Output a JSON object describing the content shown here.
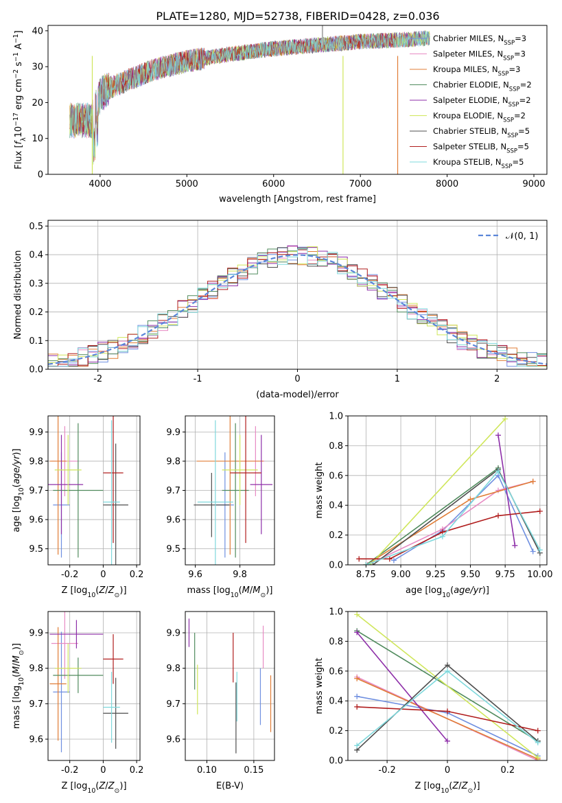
{
  "figure": {
    "title": "PLATE=1280, MJD=52738, FIBERID=0428, z=0.036"
  },
  "colors": {
    "series": [
      "#6f8fe0",
      "#e78ac3",
      "#e07c35",
      "#4f8a5c",
      "#8d2ea8",
      "#cfe65a",
      "#4d4d4d",
      "#b01c1c",
      "#7ed8dc"
    ],
    "normal_curve": "#5b86d9",
    "grid": "#b0b0b0"
  },
  "legend_entries": [
    {
      "main": "Chabrier MILES, N",
      "sub": "SSP",
      "tail": "=3"
    },
    {
      "main": "Salpeter MILES, N",
      "sub": "SSP",
      "tail": "=3"
    },
    {
      "main": "Kroupa MILES, N",
      "sub": "SSP",
      "tail": "=3"
    },
    {
      "main": "Chabrier ELODIE, N",
      "sub": "SSP",
      "tail": "=2"
    },
    {
      "main": "Salpeter ELODIE, N",
      "sub": "SSP",
      "tail": "=2"
    },
    {
      "main": "Kroupa ELODIE, N",
      "sub": "SSP",
      "tail": "=2"
    },
    {
      "main": "Chabrier STELIB, N",
      "sub": "SSP",
      "tail": "=5"
    },
    {
      "main": "Salpeter STELIB, N",
      "sub": "SSP",
      "tail": "=5"
    },
    {
      "main": "Kroupa STELIB, N",
      "sub": "SSP",
      "tail": "=5"
    }
  ],
  "chart_data": [
    {
      "id": "spectrum",
      "type": "line",
      "xlabel": "wavelength [Angstrom, rest frame]",
      "ylabel": "Flux [f_λ 10^-17 erg cm^-2 s^-1 A^-1]",
      "xlim": [
        3400,
        9150
      ],
      "ylim": [
        0,
        41.5
      ],
      "xticks": [
        4000,
        5000,
        6000,
        7000,
        8000,
        9000
      ],
      "yticks": [
        0,
        10,
        20,
        30,
        40
      ],
      "continuum_x": [
        3650,
        3900,
        4000,
        4100,
        4300,
        4600,
        5000,
        5500,
        6000,
        6500,
        7000,
        7500,
        7800
      ],
      "continuum_y": [
        15,
        15,
        22,
        24,
        26,
        29,
        31.5,
        33.5,
        35,
        36,
        37,
        37.5,
        38
      ],
      "model_end_x": [
        7800,
        7800,
        7800,
        7800,
        7800,
        7800,
        7800,
        7420,
        7800
      ],
      "drops_x": [
        3910,
        6800,
        7430
      ],
      "xlabel_text": "wavelength [Angstrom, rest frame]"
    },
    {
      "id": "residuals",
      "type": "histogram",
      "xlabel": "(data-model)/error",
      "ylabel": "Normed distribution",
      "xlim": [
        -2.5,
        2.5
      ],
      "ylim": [
        0,
        0.52
      ],
      "xticks": [
        -2,
        -1,
        0,
        1,
        2
      ],
      "yticks": [
        0,
        0.1,
        0.2,
        0.3,
        0.4,
        0.5
      ],
      "legend": "N(0,1)",
      "bin_edges_start": -2.5,
      "bin_width": 0.1
    },
    {
      "id": "age_vs_Z",
      "type": "errorbar",
      "xlabel": "Z [log10(Z/Z⊙)]",
      "ylabel": "age [log10(age/yr)]",
      "xlim": [
        -0.33,
        0.22
      ],
      "ylim": [
        9.445,
        9.955
      ],
      "xticks": [
        -0.2,
        0.0,
        0.2
      ],
      "yticks": [
        9.5,
        9.6,
        9.7,
        9.8,
        9.9
      ],
      "points": [
        {
          "x": -0.25,
          "xerr": 0.05,
          "y": 9.65,
          "yerr": 0.18
        },
        {
          "x": -0.23,
          "xerr": 0.08,
          "y": 9.8,
          "yerr": 0.12
        },
        {
          "x": -0.27,
          "xerr": 0.05,
          "y": 9.8,
          "yerr": 0.32
        },
        {
          "x": -0.15,
          "xerr": 0.15,
          "y": 9.7,
          "yerr": 0.23
        },
        {
          "x": -0.25,
          "xerr": 0.13,
          "y": 9.72,
          "yerr": 0.17
        },
        {
          "x": -0.21,
          "xerr": 0.08,
          "y": 9.77,
          "yerr": 0.12
        },
        {
          "x": 0.075,
          "xerr": 0.075,
          "y": 9.65,
          "yerr": 0.21
        },
        {
          "x": 0.06,
          "xerr": 0.06,
          "y": 9.76,
          "yerr": 0.24
        },
        {
          "x": 0.05,
          "xerr": 0.05,
          "y": 9.66,
          "yerr": 0.28
        }
      ]
    },
    {
      "id": "age_vs_mass",
      "type": "errorbar",
      "xlabel": "mass [log10(M/M⊙)]",
      "ylabel": "",
      "xlim": [
        9.555,
        9.955
      ],
      "ylim": [
        9.445,
        9.955
      ],
      "xticks": [
        9.6,
        9.8
      ],
      "yticks": [
        9.5,
        9.6,
        9.7,
        9.8,
        9.9
      ],
      "points": [
        {
          "x": 9.733,
          "xerr": 0.04,
          "y": 9.65,
          "yerr": 0.18
        },
        {
          "x": 9.87,
          "xerr": 0.04,
          "y": 9.8,
          "yerr": 0.12
        },
        {
          "x": 9.756,
          "xerr": 0.15,
          "y": 9.8,
          "yerr": 0.32
        },
        {
          "x": 9.78,
          "xerr": 0.06,
          "y": 9.7,
          "yerr": 0.23
        },
        {
          "x": 9.896,
          "xerr": 0.05,
          "y": 9.72,
          "yerr": 0.17
        },
        {
          "x": 9.8,
          "xerr": 0.08,
          "y": 9.77,
          "yerr": 0.12
        },
        {
          "x": 9.673,
          "xerr": 0.08,
          "y": 9.65,
          "yerr": 0.11
        },
        {
          "x": 9.826,
          "xerr": 0.07,
          "y": 9.76,
          "yerr": 0.24
        },
        {
          "x": 9.69,
          "xerr": 0.08,
          "y": 9.66,
          "yerr": 0.28
        }
      ]
    },
    {
      "id": "weight_vs_age",
      "type": "line",
      "xlabel": "age [log10(age/yr)]",
      "ylabel": "mass weight",
      "xlim": [
        8.62,
        10.05
      ],
      "ylim": [
        0,
        1.0
      ],
      "xticks": [
        8.75,
        9.0,
        9.25,
        9.5,
        9.75,
        10.0
      ],
      "xtick_labels": [
        "8.75",
        "9.00",
        "9.25",
        "9.50",
        "9.75",
        "10.00"
      ],
      "yticks": [
        0,
        0.2,
        0.4,
        0.6,
        0.8,
        1.0
      ],
      "series": [
        {
          "x": [
            8.95,
            9.3,
            9.7,
            9.95
          ],
          "y": [
            0.03,
            0.23,
            0.6,
            0.09
          ]
        },
        {
          "x": [
            8.76,
            9.3,
            9.7,
            9.95
          ],
          "y": [
            0.0,
            0.24,
            0.5,
            0.56
          ]
        },
        {
          "x": [
            8.75,
            9.5,
            9.95
          ],
          "y": [
            0.0,
            0.44,
            0.56
          ]
        },
        {
          "x": [
            8.75,
            9.7
          ],
          "y": [
            0.0,
            0.65
          ]
        },
        {
          "x": [
            9.7,
            9.82
          ],
          "y": [
            0.87,
            0.13
          ]
        },
        {
          "x": [
            8.78,
            9.75
          ],
          "y": [
            0.0,
            0.98
          ]
        },
        {
          "x": [
            8.8,
            9.7,
            10.0
          ],
          "y": [
            0.0,
            0.64,
            0.08
          ]
        },
        {
          "x": [
            8.7,
            8.92,
            9.3,
            9.7,
            10.0
          ],
          "y": [
            0.04,
            0.04,
            0.22,
            0.33,
            0.36
          ]
        },
        {
          "x": [
            8.75,
            9.3,
            9.7,
            10.0
          ],
          "y": [
            0.0,
            0.19,
            0.63,
            0.1
          ]
        }
      ]
    },
    {
      "id": "mass_vs_Z",
      "type": "errorbar",
      "xlabel": "Z [log10(Z/Z⊙)]",
      "ylabel": "mass [log10(M/M⊙)]",
      "xlim": [
        -0.33,
        0.22
      ],
      "ylim": [
        9.54,
        9.96
      ],
      "xticks": [
        -0.2,
        0.0,
        0.2
      ],
      "yticks": [
        9.6,
        9.7,
        9.8,
        9.9
      ],
      "points": [
        {
          "x": -0.25,
          "xerr": 0.05,
          "y": 9.733,
          "yerr": 0.17
        },
        {
          "x": -0.23,
          "xerr": 0.08,
          "y": 9.87,
          "yerr": 0.1
        },
        {
          "x": -0.27,
          "xerr": 0.05,
          "y": 9.756,
          "yerr": 0.16
        },
        {
          "x": -0.15,
          "xerr": 0.15,
          "y": 9.78,
          "yerr": 0.05
        },
        {
          "x": -0.16,
          "xerr": 0.16,
          "y": 9.896,
          "yerr": 0.04
        },
        {
          "x": -0.21,
          "xerr": 0.08,
          "y": 9.8,
          "yerr": 0.07
        },
        {
          "x": 0.075,
          "xerr": 0.075,
          "y": 9.673,
          "yerr": 0.1
        },
        {
          "x": 0.06,
          "xerr": 0.06,
          "y": 9.826,
          "yerr": 0.07
        },
        {
          "x": 0.05,
          "xerr": 0.05,
          "y": 9.69,
          "yerr": 0.1
        }
      ]
    },
    {
      "id": "mass_vs_EBV",
      "type": "errorbar",
      "xlabel": "E(B-V)",
      "ylabel": "",
      "xlim": [
        0.077,
        0.172
      ],
      "ylim": [
        9.54,
        9.96
      ],
      "xticks": [
        0.1,
        0.15
      ],
      "xtick_labels": [
        "0.10",
        "0.15"
      ],
      "yticks": [
        9.6,
        9.7,
        9.8,
        9.9
      ],
      "points": [
        {
          "x": 0.157,
          "y": 9.72,
          "yerr": 0.08
        },
        {
          "x": 0.16,
          "y": 9.86,
          "yerr": 0.06
        },
        {
          "x": 0.168,
          "y": 9.7,
          "yerr": 0.08
        },
        {
          "x": 0.087,
          "y": 9.82,
          "yerr": 0.08
        },
        {
          "x": 0.081,
          "y": 9.9,
          "yerr": 0.04
        },
        {
          "x": 0.09,
          "y": 9.74,
          "yerr": 0.07
        },
        {
          "x": 0.131,
          "y": 9.66,
          "yerr": 0.1
        },
        {
          "x": 0.128,
          "y": 9.83,
          "yerr": 0.07
        },
        {
          "x": 0.132,
          "y": 9.72,
          "yerr": 0.07
        }
      ]
    },
    {
      "id": "weight_vs_Z",
      "type": "line",
      "xlabel": "Z [log10(Z/Z⊙)]",
      "ylabel": "mass weight",
      "xlim": [
        -0.33,
        0.33
      ],
      "ylim": [
        0,
        1.0
      ],
      "xticks": [
        -0.2,
        0.0,
        0.2
      ],
      "yticks": [
        0,
        0.2,
        0.4,
        0.6,
        0.8,
        1.0
      ],
      "series": [
        {
          "x": [
            -0.3,
            0.0,
            0.3
          ],
          "y": [
            0.43,
            0.32,
            0.03
          ]
        },
        {
          "x": [
            -0.3,
            0.3
          ],
          "y": [
            0.56,
            0.0
          ]
        },
        {
          "x": [
            -0.3,
            0.3
          ],
          "y": [
            0.55,
            0.01
          ]
        },
        {
          "x": [
            -0.3,
            0.3
          ],
          "y": [
            0.87,
            0.13
          ]
        },
        {
          "x": [
            -0.3,
            0.0
          ],
          "y": [
            0.86,
            0.13
          ]
        },
        {
          "x": [
            -0.3,
            0.3
          ],
          "y": [
            0.98,
            0.02
          ]
        },
        {
          "x": [
            -0.3,
            0.0,
            0.3
          ],
          "y": [
            0.07,
            0.64,
            0.13
          ]
        },
        {
          "x": [
            -0.3,
            0.0,
            0.3
          ],
          "y": [
            0.36,
            0.33,
            0.2
          ]
        },
        {
          "x": [
            -0.3,
            0.0,
            0.3
          ],
          "y": [
            0.1,
            0.6,
            0.12
          ]
        }
      ]
    }
  ]
}
